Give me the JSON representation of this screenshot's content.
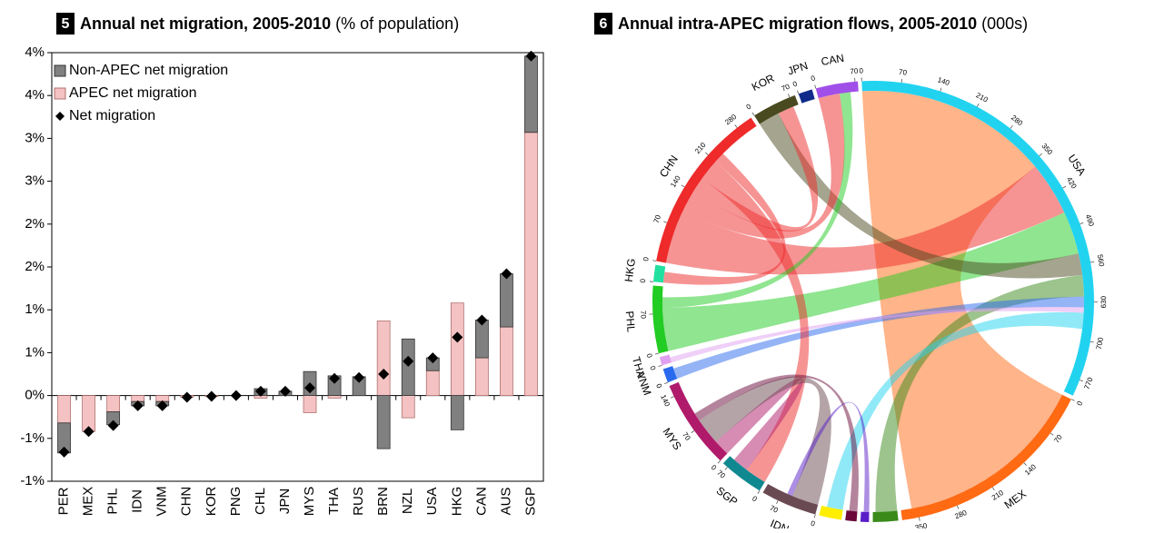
{
  "chart_data": [
    {
      "type": "bar",
      "stacked": true,
      "badge": "5",
      "title": "Annual net migration, 2005-2010",
      "subtitle": "(% of population)",
      "categories": [
        "PER",
        "MEX",
        "PHL",
        "IDN",
        "VNM",
        "CHN",
        "KOR",
        "PNG",
        "CHL",
        "JPN",
        "MYS",
        "THA",
        "RUS",
        "BRN",
        "NZL",
        "USA",
        "HKG",
        "CAN",
        "AUS",
        "SGP"
      ],
      "series": [
        {
          "name": "Non-APEC net migration",
          "color": "#808080",
          "values": [
            -0.35,
            0,
            -0.15,
            -0.05,
            -0.05,
            0,
            0,
            0,
            0.08,
            0.05,
            0.28,
            0.23,
            0.22,
            -0.62,
            0.66,
            0.15,
            -0.4,
            0.44,
            0.62,
            0.89
          ]
        },
        {
          "name": "APEC net migration",
          "color": "#f4c2c2",
          "values": [
            -0.32,
            -0.42,
            -0.19,
            -0.07,
            -0.07,
            -0.02,
            -0.01,
            0,
            -0.03,
            0,
            -0.2,
            -0.03,
            0,
            0.87,
            -0.26,
            0.29,
            1.08,
            0.44,
            0.8,
            3.07
          ]
        },
        {
          "name": "Net migration",
          "type": "scatter",
          "marker": "diamond",
          "color": "#000000",
          "values": [
            -0.66,
            -0.42,
            -0.35,
            -0.12,
            -0.12,
            -0.02,
            -0.01,
            0,
            0.05,
            0.05,
            0.09,
            0.2,
            0.21,
            0.25,
            0.4,
            0.44,
            0.68,
            0.88,
            1.42,
            3.96
          ]
        }
      ],
      "ylim": [
        -1,
        4
      ],
      "yticks": [
        {
          "value": -1,
          "label": "-1%"
        },
        {
          "value": -0.5,
          "label": "-1%"
        },
        {
          "value": 0,
          "label": "0%"
        },
        {
          "value": 0.5,
          "label": "1%"
        },
        {
          "value": 1,
          "label": "1%"
        },
        {
          "value": 1.5,
          "label": "2%"
        },
        {
          "value": 2,
          "label": "2%"
        },
        {
          "value": 2.5,
          "label": "3%"
        },
        {
          "value": 3,
          "label": "3%"
        },
        {
          "value": 3.5,
          "label": "4%"
        },
        {
          "value": 4,
          "label": "4%"
        }
      ],
      "legend": "upper left"
    },
    {
      "type": "chord",
      "badge": "6",
      "title": "Annual intra-APEC migration flows, 2005-2010",
      "subtitle": "(000s)",
      "arcs": [
        {
          "label": "USA",
          "color": "#22d3f0",
          "size": 800,
          "ticks": [
            0,
            70,
            140,
            210,
            280,
            350,
            420,
            490,
            560,
            630,
            700,
            770
          ]
        },
        {
          "label": "MEX",
          "color": "#ff6a13",
          "size": 380,
          "ticks": [
            0,
            70,
            140,
            210,
            280,
            350
          ]
        },
        {
          "label": null,
          "color": "#3a8a1a",
          "size": 45,
          "ticks": []
        },
        {
          "label": null,
          "color": "#5a1ec8",
          "size": 15,
          "ticks": []
        },
        {
          "label": null,
          "color": "#6a0a3a",
          "size": 20,
          "ticks": []
        },
        {
          "label": null,
          "color": "#ffee00",
          "size": 40,
          "ticks": []
        },
        {
          "label": "IDN",
          "color": "#6a4a52",
          "size": 100,
          "ticks": [
            0,
            70
          ]
        },
        {
          "label": "SGP",
          "color": "#108890",
          "size": 80,
          "ticks": [
            0,
            70
          ]
        },
        {
          "label": "MYS",
          "color": "#b01a6a",
          "size": 160,
          "ticks": [
            0,
            70,
            140
          ]
        },
        {
          "label": "VNM",
          "color": "#2a6aee",
          "size": 25,
          "ticks": [
            0
          ]
        },
        {
          "label": "THA",
          "color": "#e0a0f0",
          "size": 15,
          "ticks": [
            0
          ]
        },
        {
          "label": "PHL",
          "color": "#22cc22",
          "size": 120,
          "ticks": [
            0,
            70
          ]
        },
        {
          "label": "HKG",
          "color": "#22e0a0",
          "size": 30,
          "ticks": [
            0
          ]
        },
        {
          "label": "CHN",
          "color": "#ee2a2a",
          "size": 310,
          "ticks": [
            0,
            70,
            140,
            210,
            280
          ]
        },
        {
          "label": "KOR",
          "color": "#4a4a20",
          "size": 80,
          "ticks": [
            0,
            70
          ]
        },
        {
          "label": "JPN",
          "color": "#102a8a",
          "size": 25,
          "ticks": [
            0
          ]
        },
        {
          "label": "CAN",
          "color": "#a050e8",
          "size": 75,
          "ticks": [
            0,
            70
          ]
        }
      ],
      "flows": [
        {
          "source": 1,
          "target": 0,
          "value": 360
        },
        {
          "source": 13,
          "target": 0,
          "value": 100
        },
        {
          "source": 11,
          "target": 0,
          "value": 80
        },
        {
          "source": 14,
          "target": 0,
          "value": 40
        },
        {
          "source": 2,
          "target": 0,
          "value": 40
        },
        {
          "source": 9,
          "target": 0,
          "value": 20
        },
        {
          "source": 10,
          "target": 0,
          "value": 10
        },
        {
          "source": 0,
          "target": 5,
          "value": 30
        },
        {
          "source": 13,
          "target": 16,
          "value": 40
        },
        {
          "source": 13,
          "target": 14,
          "value": 30
        },
        {
          "source": 13,
          "target": 7,
          "value": 40
        },
        {
          "source": 13,
          "target": 12,
          "value": 20
        },
        {
          "source": 8,
          "target": 7,
          "value": 30
        },
        {
          "source": 6,
          "target": 8,
          "value": 50
        },
        {
          "source": 11,
          "target": 16,
          "value": 20
        },
        {
          "source": 4,
          "target": 8,
          "value": 15
        },
        {
          "source": 3,
          "target": 6,
          "value": 10
        }
      ]
    }
  ]
}
